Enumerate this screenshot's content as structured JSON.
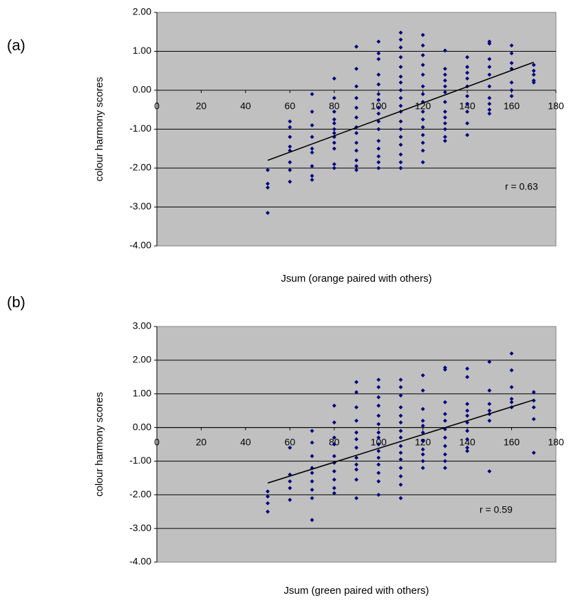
{
  "chart_data": [
    {
      "type": "scatter",
      "label": "(a)",
      "x_label": "Jsum (orange paired with others)",
      "y_label": "colour harmony scores",
      "annotation": "r = 0.63",
      "color": "#000080",
      "grid": true,
      "xlim": [
        0,
        180
      ],
      "xticks": [
        0,
        20,
        40,
        60,
        80,
        100,
        120,
        140,
        160,
        180
      ],
      "ylim": [
        -4,
        2
      ],
      "yticks": [
        {
          "value": 2,
          "label": "2.00"
        },
        {
          "value": 1,
          "label": "1.00"
        },
        {
          "value": 0,
          "label": "0.00"
        },
        {
          "value": -1,
          "label": "-1.00"
        },
        {
          "value": -2,
          "label": "-2.00"
        },
        {
          "value": -3,
          "label": "-3.00"
        },
        {
          "value": -4,
          "label": "-4.00"
        }
      ],
      "x": [
        50,
        50,
        50,
        50,
        60,
        60,
        60,
        60,
        60,
        60,
        60,
        60,
        70,
        70,
        70,
        70,
        70,
        70,
        70,
        70,
        70,
        80,
        80,
        80,
        80,
        80,
        80,
        80,
        80,
        80,
        80,
        80,
        80,
        90,
        90,
        90,
        90,
        90,
        90,
        90,
        90,
        90,
        90,
        90,
        90,
        90,
        100,
        100,
        100,
        100,
        100,
        100,
        100,
        100,
        100,
        100,
        100,
        100,
        100,
        100,
        100,
        100,
        110,
        110,
        110,
        110,
        110,
        110,
        110,
        110,
        110,
        110,
        110,
        110,
        110,
        110,
        110,
        110,
        110,
        110,
        120,
        120,
        120,
        120,
        120,
        120,
        120,
        120,
        120,
        120,
        120,
        120,
        120,
        120,
        120,
        130,
        130,
        130,
        130,
        130,
        130,
        130,
        130,
        130,
        130,
        130,
        130,
        130,
        140,
        140,
        140,
        140,
        140,
        140,
        140,
        140,
        140,
        140,
        150,
        150,
        150,
        150,
        150,
        150,
        150,
        150,
        150,
        150,
        160,
        160,
        160,
        160,
        160,
        160,
        160,
        170,
        170,
        170,
        170,
        170
      ],
      "values": [
        -2.05,
        -2.4,
        -2.5,
        -3.15,
        -0.8,
        -0.95,
        -1.2,
        -1.45,
        -1.55,
        -1.85,
        -2.05,
        -2.35,
        -0.1,
        -0.55,
        -0.9,
        -1.2,
        -1.5,
        -1.6,
        -1.95,
        -2.2,
        -2.3,
        0.3,
        -0.2,
        -0.55,
        -0.75,
        -0.85,
        -1.0,
        -1.1,
        -1.2,
        -1.35,
        -1.5,
        -1.9,
        -2.0,
        1.12,
        0.55,
        0.1,
        -0.2,
        -0.45,
        -0.7,
        -0.95,
        -1.1,
        -1.35,
        -1.55,
        -1.8,
        -1.95,
        -2.05,
        1.25,
        0.95,
        0.8,
        0.4,
        0.15,
        -0.1,
        -0.25,
        -0.45,
        -0.6,
        -0.8,
        -1.0,
        -1.3,
        -1.5,
        -1.7,
        -1.85,
        -2.0,
        1.48,
        1.3,
        1.1,
        0.85,
        0.6,
        0.35,
        0.2,
        0.0,
        -0.2,
        -0.4,
        -0.55,
        -0.8,
        -1.0,
        -1.2,
        -1.4,
        -1.65,
        -1.85,
        -2.0,
        1.42,
        1.15,
        0.9,
        0.65,
        0.4,
        0.1,
        -0.1,
        -0.3,
        -0.55,
        -0.75,
        -0.95,
        -1.15,
        -1.35,
        -1.55,
        -1.85,
        1.02,
        0.55,
        0.4,
        0.25,
        0.1,
        -0.05,
        -0.3,
        -0.55,
        -0.7,
        -0.85,
        -1.0,
        -1.2,
        -1.3,
        0.85,
        0.6,
        0.45,
        0.3,
        0.1,
        -0.15,
        -0.35,
        -0.55,
        -0.85,
        -1.15,
        1.25,
        1.2,
        0.8,
        0.6,
        0.4,
        0.1,
        -0.2,
        -0.35,
        -0.5,
        -0.6,
        1.15,
        0.95,
        0.7,
        0.55,
        0.2,
        0.0,
        -0.15,
        0.65,
        0.5,
        0.4,
        0.25,
        0.2
      ],
      "trendline": {
        "x": [
          50,
          170
        ],
        "y": [
          -1.8,
          0.72
        ],
        "color": "#000000"
      }
    },
    {
      "type": "scatter",
      "label": "(b)",
      "x_label": "Jsum (green paired with others)",
      "y_label": "colour harmony scores",
      "annotation": "r = 0.59",
      "color": "#000080",
      "grid": true,
      "xlim": [
        0,
        180
      ],
      "xticks": [
        0,
        20,
        40,
        60,
        80,
        100,
        120,
        140,
        160,
        180
      ],
      "ylim": [
        -4,
        3
      ],
      "yticks": [
        {
          "value": 3,
          "label": "3.00"
        },
        {
          "value": 2,
          "label": "2.00"
        },
        {
          "value": 1,
          "label": "1.00"
        },
        {
          "value": 0,
          "label": "0.00"
        },
        {
          "value": -1,
          "label": "-1.00"
        },
        {
          "value": -2,
          "label": "-2.00"
        },
        {
          "value": -3,
          "label": "-3.00"
        },
        {
          "value": -4,
          "label": "-4.00"
        }
      ],
      "x": [
        50,
        50,
        50,
        50,
        60,
        60,
        60,
        60,
        60,
        70,
        70,
        70,
        70,
        70,
        70,
        70,
        70,
        70,
        80,
        80,
        80,
        80,
        80,
        80,
        80,
        80,
        80,
        80,
        90,
        90,
        90,
        90,
        90,
        90,
        90,
        90,
        90,
        90,
        90,
        90,
        100,
        100,
        100,
        100,
        100,
        100,
        100,
        100,
        100,
        100,
        100,
        100,
        100,
        100,
        100,
        110,
        110,
        110,
        110,
        110,
        110,
        110,
        110,
        110,
        110,
        110,
        110,
        110,
        110,
        110,
        120,
        120,
        120,
        120,
        120,
        120,
        120,
        120,
        120,
        120,
        120,
        130,
        130,
        130,
        130,
        130,
        130,
        130,
        130,
        130,
        130,
        130,
        140,
        140,
        140,
        140,
        140,
        140,
        140,
        140,
        140,
        140,
        150,
        150,
        150,
        150,
        150,
        150,
        150,
        160,
        160,
        160,
        160,
        160,
        160,
        170,
        170,
        170,
        170,
        170
      ],
      "values": [
        -1.9,
        -2.05,
        -2.25,
        -2.5,
        -0.6,
        -1.4,
        -1.6,
        -1.8,
        -2.15,
        -0.1,
        -0.45,
        -0.85,
        -1.2,
        -1.35,
        -1.6,
        -1.85,
        -2.1,
        -2.75,
        0.65,
        0.15,
        -0.3,
        -0.5,
        -0.85,
        -1.05,
        -1.3,
        -1.55,
        -1.8,
        -1.95,
        1.35,
        1.05,
        0.6,
        0.2,
        -0.15,
        -0.35,
        -0.6,
        -0.9,
        -1.1,
        -1.25,
        -1.55,
        -2.1,
        1.42,
        1.2,
        0.9,
        0.65,
        0.35,
        0.1,
        -0.15,
        -0.3,
        -0.5,
        -0.7,
        -0.9,
        -1.1,
        -1.35,
        -1.6,
        -2.0,
        1.42,
        1.2,
        0.95,
        0.6,
        0.35,
        0.15,
        -0.1,
        -0.3,
        -0.55,
        -0.75,
        -0.95,
        -1.2,
        -1.45,
        -1.7,
        -2.1,
        1.55,
        1.1,
        0.55,
        0.2,
        0.05,
        -0.15,
        -0.4,
        -0.65,
        -0.8,
        -1.0,
        -1.2,
        1.78,
        1.72,
        0.75,
        0.4,
        0.2,
        -0.05,
        -0.3,
        -0.55,
        -0.8,
        -1.0,
        -1.2,
        1.75,
        1.5,
        0.7,
        0.5,
        0.35,
        0.15,
        -0.1,
        -0.35,
        -0.6,
        -0.7,
        1.95,
        1.1,
        0.7,
        0.5,
        0.4,
        0.2,
        -1.3,
        2.2,
        1.7,
        1.2,
        0.85,
        0.75,
        0.6,
        1.05,
        0.8,
        0.6,
        0.25,
        -0.75
      ],
      "trendline": {
        "x": [
          50,
          170
        ],
        "y": [
          -1.65,
          0.82
        ],
        "color": "#000000"
      }
    }
  ]
}
